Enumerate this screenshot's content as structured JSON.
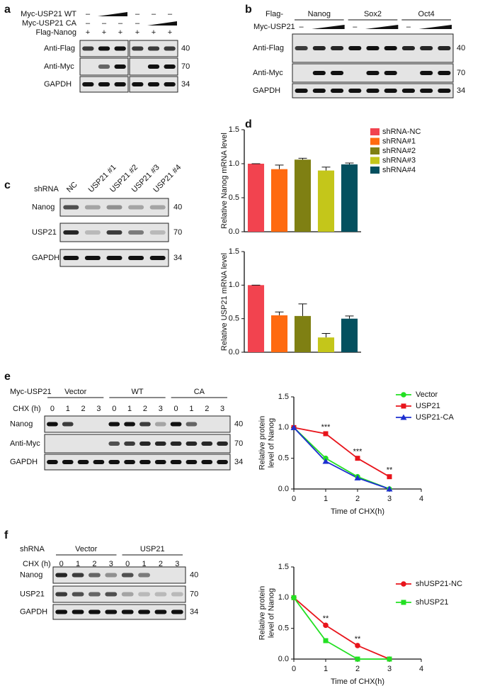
{
  "figure": {
    "panel_letters": [
      "a",
      "b",
      "c",
      "d",
      "e",
      "f"
    ],
    "a": {
      "rows": [
        {
          "label": "Myc-USP21 WT",
          "signs": [
            "–",
            null,
            null,
            "–",
            "–",
            "–"
          ]
        },
        {
          "label": "Myc-USP21 CA",
          "signs": [
            "–",
            "–",
            "–",
            "–",
            null,
            null
          ]
        },
        {
          "label": "Flag-Nanog",
          "signs": [
            "+",
            "+",
            "+",
            "+",
            "+",
            "+"
          ]
        }
      ],
      "blot_rows": [
        "Anti-Flag",
        "Anti-Myc",
        "GAPDH"
      ],
      "mw": [
        "40",
        "70",
        "34"
      ]
    },
    "b": {
      "prefix": "Flag-",
      "groups": [
        "Nanog",
        "Sox2",
        "Oct4"
      ],
      "treatment": "Myc-USP21",
      "sign": "–",
      "blot_rows": [
        "Anti-Flag",
        "Anti-Myc",
        "GAPDH"
      ],
      "mw": [
        "40",
        "70",
        "34"
      ]
    },
    "c": {
      "treatment": "shRNA",
      "lanes": [
        "NC",
        "USP21 #1",
        "USP21 #2",
        "USP21 #3",
        "USP21 #4"
      ],
      "blot_rows": [
        "Nanog",
        "USP21",
        "GAPDH"
      ],
      "mw": [
        "40",
        "70",
        "34"
      ]
    },
    "e": {
      "treatment": "Myc-USP21",
      "groups": [
        "Vector",
        "WT",
        "CA"
      ],
      "time_label": "CHX (h)",
      "times": [
        "0",
        "1",
        "2",
        "3"
      ],
      "blot_rows": [
        "Nanog",
        "Anti-Myc",
        "GAPDH"
      ],
      "mw": [
        "40",
        "70",
        "34"
      ]
    },
    "f": {
      "treatment": "shRNA",
      "groups": [
        "Vector",
        "USP21"
      ],
      "time_label": "CHX (h)",
      "times": [
        "0",
        "1",
        "2",
        "3"
      ],
      "blot_rows": [
        "Nanog",
        "USP21",
        "GAPDH"
      ],
      "mw": [
        "40",
        "70",
        "34"
      ]
    }
  },
  "chart_data": [
    {
      "type": "bar",
      "ylabel": "Relative Nanog mRNA level",
      "categories": [
        "shRNA-NC",
        "shRNA#1",
        "shRNA#2",
        "shRNA#3",
        "shRNA#4"
      ],
      "colors": [
        "#f2434f",
        "#ff6a10",
        "#7f8013",
        "#c4c61a",
        "#04505f"
      ],
      "values": [
        1.0,
        0.92,
        1.06,
        0.9,
        0.99
      ],
      "errors": [
        0,
        0.06,
        0.02,
        0.05,
        0.02
      ],
      "ylim": [
        0,
        1.5
      ],
      "yticks": [
        {
          "value": 0,
          "label": "0.0"
        },
        0.5,
        {
          "value": 1,
          "label": "1.0"
        },
        1.5
      ],
      "legend": "upper right"
    },
    {
      "type": "bar",
      "ylabel": "Relative USP21 mRNA level",
      "categories": [
        null,
        null,
        null,
        null,
        null
      ],
      "colors": [
        "#f2434f",
        "#ff6a10",
        "#7f8013",
        "#c4c61a",
        "#04505f"
      ],
      "values": [
        1.0,
        0.55,
        0.54,
        0.22,
        0.5
      ],
      "errors": [
        0,
        0.05,
        0.18,
        0.06,
        0.04
      ],
      "ylim": [
        0,
        1.5
      ],
      "yticks": [
        {
          "value": 0,
          "label": "0.0"
        },
        0.5,
        {
          "value": 1,
          "label": "1.0"
        },
        1.5
      ]
    },
    {
      "type": "line",
      "ylabel": [
        "Relative protein",
        "level of Nanog"
      ],
      "xlabel": "Time of CHX(h)",
      "x": [
        0,
        1,
        2,
        3
      ],
      "xlim": [
        0,
        4
      ],
      "xticks": [
        0,
        1,
        2,
        3,
        4
      ],
      "ylim": [
        0,
        1.5
      ],
      "yticks": [
        {
          "value": 0,
          "label": "0.0"
        },
        0.5,
        {
          "value": 1,
          "label": "1.0"
        },
        1.5
      ],
      "series": [
        {
          "name": "Vector",
          "color": "#22e022",
          "marker": "circle",
          "values": [
            1.0,
            0.5,
            0.2,
            0.0
          ]
        },
        {
          "name": "USP21",
          "color": "#e8141b",
          "marker": "square",
          "values": [
            1.0,
            0.9,
            0.5,
            0.2
          ]
        },
        {
          "name": "USP21-CA",
          "color": "#1d2fd0",
          "marker": "triangle",
          "values": [
            1.0,
            0.45,
            0.18,
            0.0
          ]
        }
      ],
      "annotations": [
        {
          "text": "***",
          "x": 1
        },
        {
          "text": "***",
          "x": 2
        },
        {
          "text": "**",
          "x": 3
        }
      ],
      "legend": "upper right"
    },
    {
      "type": "line",
      "ylabel": [
        "Relative protein",
        "level of Nanog"
      ],
      "xlabel": "Time of CHX(h)",
      "x": [
        0,
        1,
        2,
        3
      ],
      "xlim": [
        0,
        4
      ],
      "xticks": [
        0,
        1,
        2,
        3,
        4
      ],
      "ylim": [
        0,
        1.5
      ],
      "yticks": [
        {
          "value": 0,
          "label": "0.0"
        },
        0.5,
        {
          "value": 1,
          "label": "1.0"
        },
        1.5
      ],
      "series": [
        {
          "name": "shUSP21-NC",
          "color": "#e8141b",
          "marker": "circle",
          "values": [
            1.0,
            0.55,
            0.22,
            0.0
          ]
        },
        {
          "name": "shUSP21",
          "color": "#22e022",
          "marker": "square",
          "values": [
            1.0,
            0.3,
            0.0,
            0.0
          ]
        }
      ],
      "annotations": [
        {
          "text": "**",
          "x": 1
        },
        {
          "text": "**",
          "x": 2
        }
      ],
      "legend": "upper right"
    }
  ]
}
